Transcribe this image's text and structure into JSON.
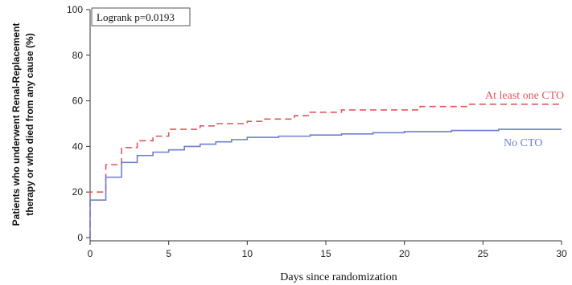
{
  "chart_data": {
    "type": "line",
    "xlabel": "Days since randomization",
    "ylabel_lines": [
      "Patients who underwent Renal-Replacement",
      "therapy or who died from any cause (%)"
    ],
    "xlim": [
      0,
      30
    ],
    "ylim": [
      0,
      100
    ],
    "xticks": [
      0,
      5,
      10,
      15,
      20,
      25,
      30
    ],
    "yticks": [
      0,
      20,
      40,
      60,
      80,
      100
    ],
    "annotation": "Logrank p=0.0193",
    "series": [
      {
        "name": "At least one CTO",
        "color": "#e0575a",
        "dash": "dashed",
        "points": [
          [
            0,
            0
          ],
          [
            0,
            20
          ],
          [
            1,
            20
          ],
          [
            1,
            32
          ],
          [
            2,
            32
          ],
          [
            2,
            39.5
          ],
          [
            3,
            39.5
          ],
          [
            3,
            42.5
          ],
          [
            4,
            42.5
          ],
          [
            4,
            44.5
          ],
          [
            5,
            44.5
          ],
          [
            5,
            47.5
          ],
          [
            7,
            47.5
          ],
          [
            7,
            49
          ],
          [
            8,
            49
          ],
          [
            8,
            50
          ],
          [
            10,
            50
          ],
          [
            10,
            51
          ],
          [
            11,
            51
          ],
          [
            11,
            52
          ],
          [
            13,
            52
          ],
          [
            13,
            53.5
          ],
          [
            14,
            53.5
          ],
          [
            14,
            55
          ],
          [
            16,
            55
          ],
          [
            16,
            56
          ],
          [
            21,
            56
          ],
          [
            21,
            57.5
          ],
          [
            24,
            57.5
          ],
          [
            24,
            58.5
          ],
          [
            30,
            58.5
          ]
        ]
      },
      {
        "name": "No CTO",
        "color": "#6f7fcf",
        "dash": "solid",
        "points": [
          [
            0,
            0
          ],
          [
            0,
            16.5
          ],
          [
            1,
            16.5
          ],
          [
            1,
            26.5
          ],
          [
            2,
            26.5
          ],
          [
            2,
            33
          ],
          [
            3,
            33
          ],
          [
            3,
            36
          ],
          [
            4,
            36
          ],
          [
            4,
            37.5
          ],
          [
            5,
            37.5
          ],
          [
            5,
            38.5
          ],
          [
            6,
            38.5
          ],
          [
            6,
            40
          ],
          [
            7,
            40
          ],
          [
            7,
            41
          ],
          [
            8,
            41
          ],
          [
            8,
            42
          ],
          [
            9,
            42
          ],
          [
            9,
            43
          ],
          [
            10,
            43
          ],
          [
            10,
            44
          ],
          [
            12,
            44
          ],
          [
            12,
            44.5
          ],
          [
            14,
            44.5
          ],
          [
            14,
            45
          ],
          [
            16,
            45
          ],
          [
            16,
            45.5
          ],
          [
            18,
            45.5
          ],
          [
            18,
            46
          ],
          [
            20,
            46
          ],
          [
            20,
            46.5
          ],
          [
            23,
            46.5
          ],
          [
            23,
            47
          ],
          [
            26,
            47
          ],
          [
            26,
            47.5
          ],
          [
            30,
            47.5
          ]
        ]
      }
    ]
  }
}
